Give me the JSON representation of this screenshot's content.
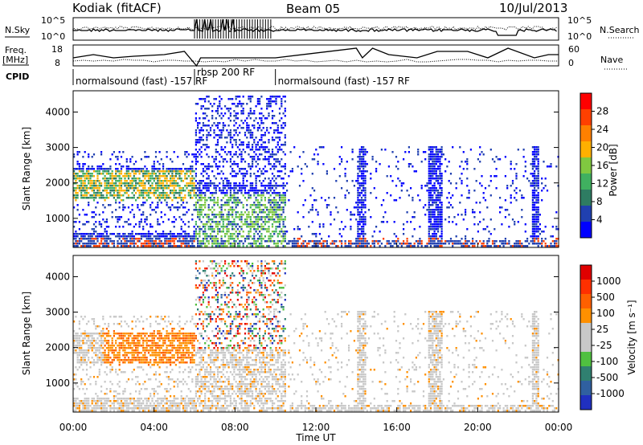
{
  "header": {
    "title": "Kodiak (fitACF)",
    "beam": "Beam 05",
    "date": "10/Jul/2013"
  },
  "top_panel": {
    "left_label": "N.Sky",
    "right_label": "N.Search",
    "left_ticks": [
      "10^5",
      "10^0"
    ],
    "right_ticks": [
      "10^5",
      "10^0"
    ]
  },
  "freq_panel": {
    "left_label_1": "Freq.",
    "left_label_2": "[MHz]",
    "right_label": "Nave",
    "left_ticks": [
      "18",
      "8"
    ],
    "right_ticks": [
      "60",
      "0"
    ]
  },
  "cpid": {
    "label": "CPID",
    "segments": [
      {
        "text": "normalsound (fast) -157 RF",
        "start_h": 0,
        "end_h": 6
      },
      {
        "text": "rbsp 200 RF",
        "start_h": 6,
        "end_h": 10
      },
      {
        "text": "normalsound (fast) -157 RF",
        "start_h": 10,
        "end_h": 24
      }
    ]
  },
  "chart_data": [
    {
      "type": "heatmap",
      "name": "power",
      "ylabel": "Slant Range [km]",
      "xlim": [
        0,
        24
      ],
      "ylim": [
        180,
        4600
      ],
      "yticks": [
        "1000",
        "2000",
        "3000",
        "4000"
      ],
      "colorbar_label": "Power [dB]",
      "colorbar_ticks": [
        "28",
        "24",
        "20",
        "16",
        "12",
        "8",
        "4"
      ],
      "colors": [
        "#0000ff",
        "#2040b0",
        "#2e7c62",
        "#40b060",
        "#80c840",
        "#ffb000",
        "#ff8000",
        "#ff4000",
        "#ff0000"
      ]
    },
    {
      "type": "heatmap",
      "name": "velocity",
      "ylabel": "Slant Range [km]",
      "xlabel": "Time UT",
      "xlim": [
        0,
        24
      ],
      "ylim": [
        180,
        4600
      ],
      "yticks": [
        "1000",
        "2000",
        "3000",
        "4000"
      ],
      "xticks": [
        "00:00",
        "04:00",
        "08:00",
        "12:00",
        "16:00",
        "20:00",
        "00:00"
      ],
      "colorbar_label": "Velocity [m s⁻¹]",
      "colorbar_ticks": [
        "1000",
        "500",
        "100",
        "25",
        "-25",
        "-100",
        "-500",
        "-1000"
      ],
      "colors": [
        "#2030c0",
        "#3060a0",
        "#308070",
        "#50c040",
        "#c8c8c8",
        "#c8c8c8",
        "#ff9000",
        "#ff6000",
        "#ff3000",
        "#e00000"
      ]
    }
  ]
}
